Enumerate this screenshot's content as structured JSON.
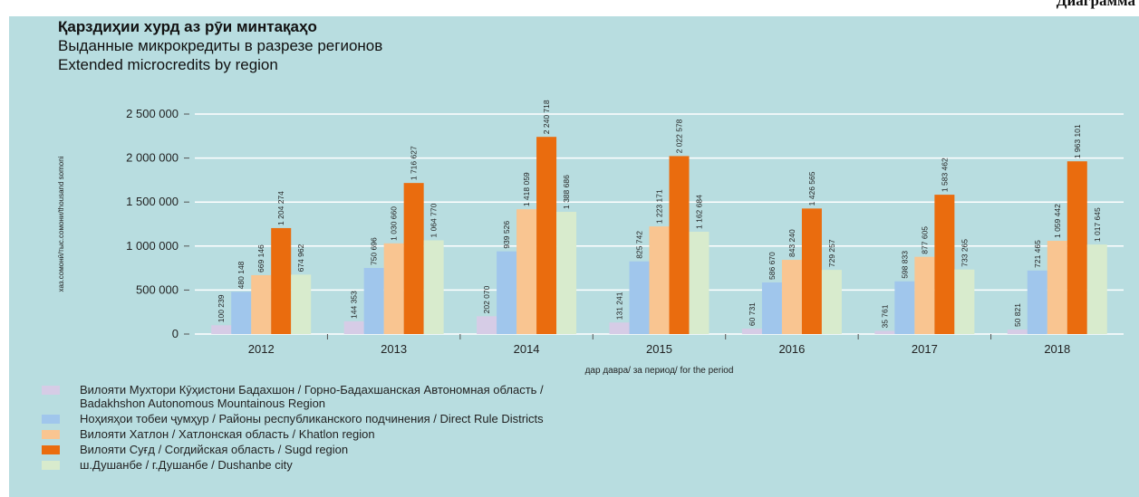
{
  "chart_data": {
    "type": "bar",
    "corner_text": "Диаграмма",
    "title": "Қарздиҳии хурд аз рӯи минтақаҳо",
    "subtitle": "Выданные микрокредиты в разрезе регионов",
    "subtitle2": "Extended microcredits by region",
    "y_label": "хаз.сомонӣ/тыс.сомони/thousand somoni",
    "x_label": "дар давра/ за период/ for the period",
    "categories": [
      "2012",
      "2013",
      "2014",
      "2015",
      "2016",
      "2017",
      "2018"
    ],
    "ylim": [
      0,
      2500000
    ],
    "yticks": [
      0,
      {
        "value": 500000,
        "label": "500 000"
      },
      {
        "value": 1000000,
        "label": "1 000 000"
      },
      {
        "value": 1500000,
        "label": "1 500 000"
      },
      {
        "value": 2000000,
        "label": "2 000 000"
      },
      {
        "value": 2500000,
        "label": "2 500 000"
      }
    ],
    "grid": true,
    "series": [
      {
        "name": "Вилояти Мухтори Кӯҳистони Бадахшон / Горно-Бадахшанская Автономная область /\nBadakhshon Autonomous Mountainous Region",
        "color": "#d6cce6",
        "values": [
          100239,
          144353,
          202070,
          131241,
          60731,
          35761,
          50821
        ],
        "value_labels": [
          "100 239",
          "144 353",
          "202 070",
          "131 241",
          "60 731",
          "35 761",
          "50 821"
        ]
      },
      {
        "name": "Ноҳияҳои тобеи ҷумҳур / Районы республиканского подчинения / Direct Rule Districts",
        "color": "#a0c6ec",
        "values": [
          480148,
          750696,
          939526,
          825742,
          586670,
          598833,
          721465
        ],
        "value_labels": [
          "480 148",
          "750 696",
          "939 526",
          "825 742",
          "586 670",
          "598 833",
          "721 465"
        ]
      },
      {
        "name": "Вилояти Хатлон / Хатлонская область / Khatlon region",
        "color": "#f9c591",
        "values": [
          669146,
          1030660,
          1418059,
          1223171,
          843240,
          877605,
          1059442
        ],
        "value_labels": [
          "669 146",
          "1 030 660",
          "1 418 059",
          "1 223 171",
          "843 240",
          "877 605",
          "1 059 442"
        ]
      },
      {
        "name": "Вилояти Суғд / Согдийская область / Sugd region",
        "color": "#ea6c0e",
        "values": [
          1204274,
          1716627,
          2240718,
          2022578,
          1426565,
          1583462,
          1963101
        ],
        "value_labels": [
          "1 204 274",
          "1 716 627",
          "2 240 718",
          "2 022 578",
          "1 426 565",
          "1 583 462",
          "1 963 101"
        ]
      },
      {
        "name": "ш.Душанбе / г.Душанбе / Dushanbe city",
        "color": "#d8ebcd",
        "values": [
          674962,
          1064770,
          1388686,
          1162684,
          729257,
          733265,
          1017645
        ],
        "value_labels": [
          "674 962",
          "1 064 770",
          "1 388 686",
          "1 162 684",
          "729 257",
          "733 265",
          "1 017 645"
        ]
      }
    ]
  }
}
